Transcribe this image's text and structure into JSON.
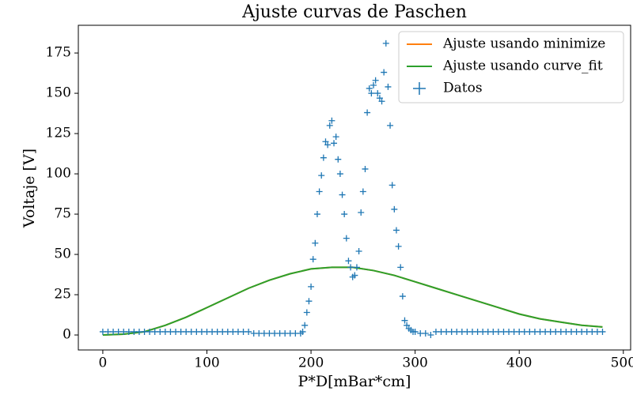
{
  "chart_data": {
    "type": "scatter",
    "title": "Ajuste curvas de Paschen",
    "xlabel": "P*D[mBar*cm]",
    "ylabel": "Voltaje [V]",
    "xlim": [
      -23.5,
      507
    ],
    "ylim": [
      -9.3,
      192.2
    ],
    "xticks": [
      0,
      100,
      200,
      300,
      400,
      500
    ],
    "yticks": [
      0,
      25,
      50,
      75,
      100,
      125,
      150,
      175
    ],
    "legend": "upper right",
    "series": [
      {
        "name": "Ajuste usando minimize",
        "type": "line",
        "color": "#ff7f0e",
        "x": [
          0,
          20,
          40,
          60,
          80,
          100,
          120,
          140,
          160,
          180,
          200,
          220,
          240,
          260,
          280,
          300,
          320,
          340,
          360,
          380,
          400,
          420,
          440,
          460,
          480
        ],
        "values": [
          0,
          0.5,
          2,
          6,
          11,
          17,
          23,
          29,
          34,
          38,
          41,
          42,
          42,
          40,
          37,
          33,
          29,
          25,
          21,
          17,
          13,
          10,
          8,
          6,
          5
        ]
      },
      {
        "name": "Ajuste usando curve_fit",
        "type": "line",
        "color": "#2ca02c",
        "x": [
          0,
          20,
          40,
          60,
          80,
          100,
          120,
          140,
          160,
          180,
          200,
          220,
          240,
          260,
          280,
          300,
          320,
          340,
          360,
          380,
          400,
          420,
          440,
          460,
          480
        ],
        "values": [
          0,
          0.5,
          2,
          6,
          11,
          17,
          23,
          29,
          34,
          38,
          41,
          42,
          42,
          40,
          37,
          33,
          29,
          25,
          21,
          17,
          13,
          10,
          8,
          6,
          5
        ]
      },
      {
        "name": "Datos",
        "type": "scatter",
        "color": "#1f77b4",
        "x": [
          0,
          5,
          10,
          15,
          20,
          25,
          30,
          35,
          40,
          45,
          50,
          55,
          60,
          65,
          70,
          75,
          80,
          85,
          90,
          95,
          100,
          105,
          110,
          115,
          120,
          125,
          130,
          135,
          140,
          145,
          150,
          155,
          160,
          165,
          170,
          175,
          180,
          185,
          190,
          192,
          194,
          196,
          198,
          200,
          202,
          204,
          206,
          208,
          210,
          212,
          214,
          216,
          218,
          220,
          222,
          224,
          226,
          228,
          230,
          232,
          234,
          236,
          238,
          240,
          242,
          244,
          246,
          248,
          250,
          252,
          254,
          256,
          258,
          260,
          262,
          264,
          266,
          268,
          270,
          272,
          274,
          276,
          278,
          280,
          282,
          284,
          286,
          288,
          290,
          292,
          294,
          296,
          298,
          300,
          305,
          310,
          315,
          320,
          325,
          330,
          335,
          340,
          345,
          350,
          355,
          360,
          365,
          370,
          375,
          380,
          385,
          390,
          395,
          400,
          405,
          410,
          415,
          420,
          425,
          430,
          435,
          440,
          445,
          450,
          455,
          460,
          465,
          470,
          475,
          480
        ],
        "values": [
          2,
          2,
          2,
          2,
          2,
          2,
          2,
          2,
          2,
          2,
          2,
          2,
          2,
          2,
          2,
          2,
          2,
          2,
          2,
          2,
          2,
          2,
          2,
          2,
          2,
          2,
          2,
          2,
          2,
          1,
          1,
          1,
          1,
          1,
          1,
          1,
          1,
          1,
          1,
          2,
          6,
          14,
          21,
          30,
          47,
          57,
          75,
          89,
          99,
          110,
          120,
          118,
          130,
          133,
          119,
          123,
          109,
          100,
          87,
          75,
          60,
          46,
          42,
          36,
          37,
          42,
          52,
          76,
          89,
          103,
          138,
          153,
          150,
          155,
          158,
          150,
          147,
          145,
          163,
          181,
          154,
          130,
          93,
          78,
          65,
          55,
          42,
          24,
          9,
          6,
          4,
          3,
          2,
          2,
          1,
          1,
          0,
          2,
          2,
          2,
          2,
          2,
          2,
          2,
          2,
          2,
          2,
          2,
          2,
          2,
          2,
          2,
          2,
          2,
          2,
          2,
          2,
          2,
          2,
          2,
          2,
          2,
          2,
          2,
          2,
          2,
          2,
          2,
          2,
          2
        ]
      }
    ]
  }
}
